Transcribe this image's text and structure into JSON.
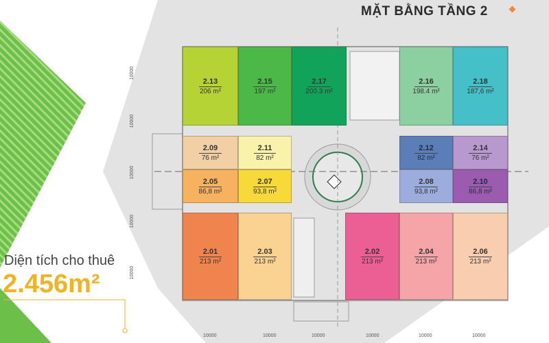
{
  "title": "MẶT BẰNG TẦNG 2",
  "rental_area": {
    "label": "Diện tích cho thuê",
    "value": "2.456m²"
  },
  "colors": {
    "accent_orange": "#f0b323",
    "brand_green": "#6cc04a",
    "background_grey": "#e3e3e3"
  },
  "rooms": [
    {
      "code": "2.13",
      "area": "206 m²",
      "color": "#b5d334"
    },
    {
      "code": "2.15",
      "area": "197 m²",
      "color": "#4cb848"
    },
    {
      "code": "2.17",
      "area": "200.3 m²",
      "color": "#12a35b"
    },
    {
      "code": "2.16",
      "area": "198.4 m²",
      "color": "#8ccfa0"
    },
    {
      "code": "2.18",
      "area": "187,6 m²",
      "color": "#45bfc8"
    },
    {
      "code": "2.09",
      "area": "76 m²",
      "color": "#f3cfa6"
    },
    {
      "code": "2.11",
      "area": "82 m²",
      "color": "#f8f2aa"
    },
    {
      "code": "2.05",
      "area": "86,8 m²",
      "color": "#f6b25f"
    },
    {
      "code": "2.07",
      "area": "93,8 m²",
      "color": "#f7d93a"
    },
    {
      "code": "2.12",
      "area": "82 m²",
      "color": "#5b7db8"
    },
    {
      "code": "2.14",
      "area": "76 m²",
      "color": "#b899cf"
    },
    {
      "code": "2.08",
      "area": "93,8 m²",
      "color": "#9cacdc"
    },
    {
      "code": "2.10",
      "area": "86,8 m²",
      "color": "#9b5cb0"
    },
    {
      "code": "2.01",
      "area": "213 m²",
      "color": "#f0844e"
    },
    {
      "code": "2.03",
      "area": "213 m²",
      "color": "#fad392"
    },
    {
      "code": "2.02",
      "area": "213 m²",
      "color": "#ec5f95"
    },
    {
      "code": "2.04",
      "area": "213 m²",
      "color": "#f5a4a8"
    },
    {
      "code": "2.06",
      "area": "213 m²",
      "color": "#f9cdb0"
    }
  ],
  "dimensions": {
    "left": [
      "10000",
      "10000",
      "10000",
      "10000",
      "10000"
    ],
    "bottom": [
      "10000",
      "10000",
      "10000",
      "10000",
      "10000",
      "10000"
    ]
  }
}
